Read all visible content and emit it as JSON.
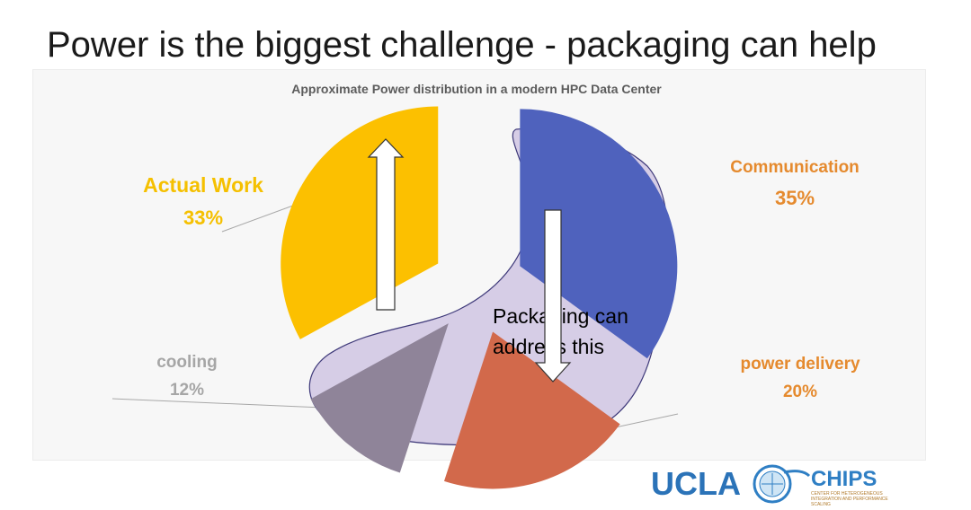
{
  "slide": {
    "title": "Power is the biggest challenge - packaging can help"
  },
  "chart_data": {
    "type": "pie",
    "title": "Approximate Power distribution in a modern HPC Data Center",
    "slices": [
      {
        "label": "Communication",
        "value": 35,
        "value_label": "35%",
        "color": "#4f62bd"
      },
      {
        "label": "power delivery",
        "value": 20,
        "value_label": "20%",
        "color": "#d2694b"
      },
      {
        "label": "cooling",
        "value": 12,
        "value_label": "12%",
        "color": "#8f8499"
      },
      {
        "label": "Actual Work",
        "value": 33,
        "value_label": "33%",
        "color": "#fcc000"
      }
    ],
    "label_colors": {
      "Communication": "#e58a2e",
      "power delivery": "#e58a2e",
      "cooling": "#a6a6a6",
      "Actual Work": "#f5c000"
    },
    "annotation": "Packaging can address this",
    "annotation_lines": [
      "Packaging can",
      "address this"
    ]
  },
  "logo": {
    "ucla": "UCLA",
    "chips": "CHIPS",
    "chips_sub": "CENTER FOR HETEROGENEOUS INTEGRATION AND PERFORMANCE SCALING"
  }
}
